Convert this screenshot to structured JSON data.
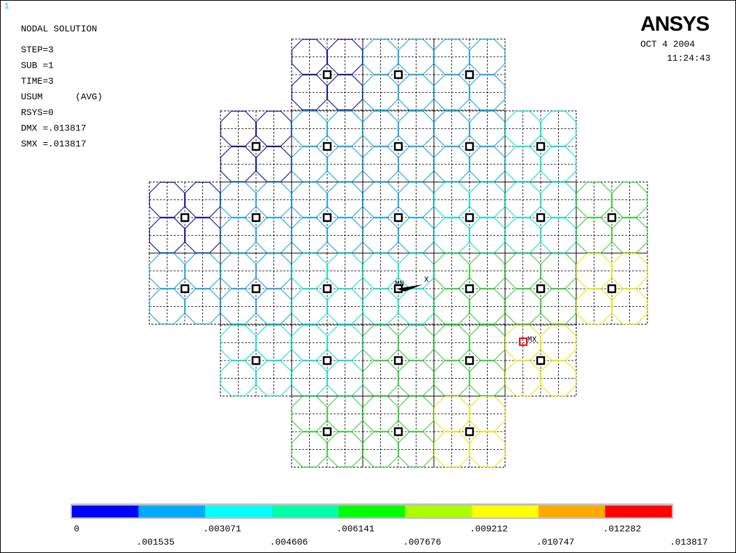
{
  "window_label": "1",
  "info": {
    "title": "NODAL SOLUTION",
    "lines": [
      "STEP=3",
      "SUB =1",
      "TIME=3",
      "USUM      (AVG)",
      "RSYS=0",
      "DMX =.013817",
      "SMX =.013817"
    ]
  },
  "logo": "ANSYS",
  "date": "OCT  4 2004",
  "time": "11:24:43",
  "markers": {
    "min": "MN",
    "max": "MX",
    "axis": "X"
  },
  "legend": {
    "colors": [
      "#0000ff",
      "#00aaff",
      "#00ffff",
      "#00ffaa",
      "#00ff00",
      "#aaff00",
      "#ffff00",
      "#ffaa00",
      "#ff0000"
    ],
    "labels": [
      "0",
      ".001535",
      ".003071",
      ".004606",
      ".006141",
      ".007676",
      ".009212",
      ".010747",
      ".012282",
      ".013817"
    ]
  }
}
